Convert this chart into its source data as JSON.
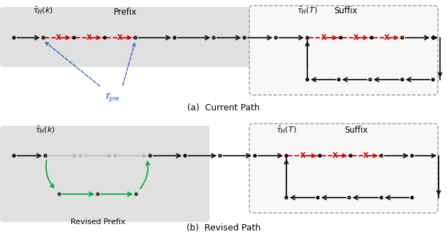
{
  "fig_width": 6.4,
  "fig_height": 3.38,
  "bg_color": "#ffffff",
  "node_black": "#1a1a1a",
  "node_yellow": "#F5A800",
  "node_red": "#CC0000",
  "node_dark_gray": "#555555",
  "node_light_gray": "#cccccc",
  "node_dark_blue": "#1a1a6e",
  "arrow_black": "#111111",
  "arrow_green": "#00aa44",
  "x_color": "#CC0000",
  "t_pre_color": "#3355bb",
  "suffix_box_color": "#999999",
  "panel_bg": "#e0e0e0",
  "title_a": "(a)  Current Path",
  "title_b": "(b)  Revised Path",
  "prefix_label": "Prefix",
  "suffix_label": "Suffix",
  "revised_prefix_label": "Revised Prefix",
  "tau_hk_label": "$\\hat{\\tau}_H(k)$",
  "tau_hT_label_a": "$\\hat{\\tau}_H(T)$",
  "tau_hT_label_b": "$\\hat{\\tau}_H(T)$",
  "T_pre_label": "$\\mathcal{T}_{\\mathrm{pre}}$",
  "node_r": 0.018
}
